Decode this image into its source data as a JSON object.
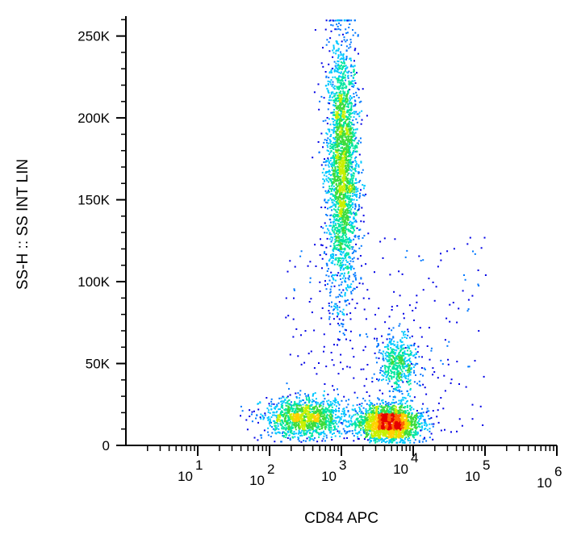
{
  "chart_data": {
    "type": "scatter",
    "subtype": "flow-cytometry-density-dot-plot",
    "xlabel": "CD84 APC",
    "ylabel": "SS-H :: SS INT LIN",
    "x_scale": "log",
    "xlim": [
      1,
      1000000
    ],
    "ylim": [
      0,
      262144
    ],
    "x_ticks": [
      {
        "value": 10,
        "base": "10",
        "exp": "1"
      },
      {
        "value": 100,
        "base": "10",
        "exp": "2"
      },
      {
        "value": 1000,
        "base": "10",
        "exp": "3"
      },
      {
        "value": 10000,
        "base": "10",
        "exp": "4"
      },
      {
        "value": 100000,
        "base": "10",
        "exp": "5"
      },
      {
        "value": 1000000,
        "base": "10",
        "exp": "6"
      }
    ],
    "y_ticks": [
      {
        "value": 0,
        "label": "0"
      },
      {
        "value": 50000,
        "label": "50K"
      },
      {
        "value": 100000,
        "label": "100K"
      },
      {
        "value": 150000,
        "label": "150K"
      },
      {
        "value": 200000,
        "label": "200K"
      },
      {
        "value": 250000,
        "label": "250K"
      }
    ],
    "grid": false,
    "legend": "none",
    "density_colors": [
      "#0000e6",
      "#0078ff",
      "#00c8ff",
      "#00e6a0",
      "#3cdc3c",
      "#c8f000",
      "#ffd200",
      "#ff6400",
      "#e60000"
    ],
    "populations": [
      {
        "x_center": 1000,
        "y_center": 170000,
        "x_spread_decades": 0.11,
        "y_spread": 40000,
        "count": 2600
      },
      {
        "x_center": 4500,
        "y_center": 14000,
        "x_spread_decades": 0.22,
        "y_spread": 5500,
        "count": 1900
      },
      {
        "x_center": 320,
        "y_center": 17000,
        "x_spread_decades": 0.3,
        "y_spread": 6000,
        "count": 1300
      },
      {
        "x_center": 6000,
        "y_center": 50000,
        "x_spread_decades": 0.13,
        "y_spread": 9000,
        "count": 500
      }
    ]
  }
}
